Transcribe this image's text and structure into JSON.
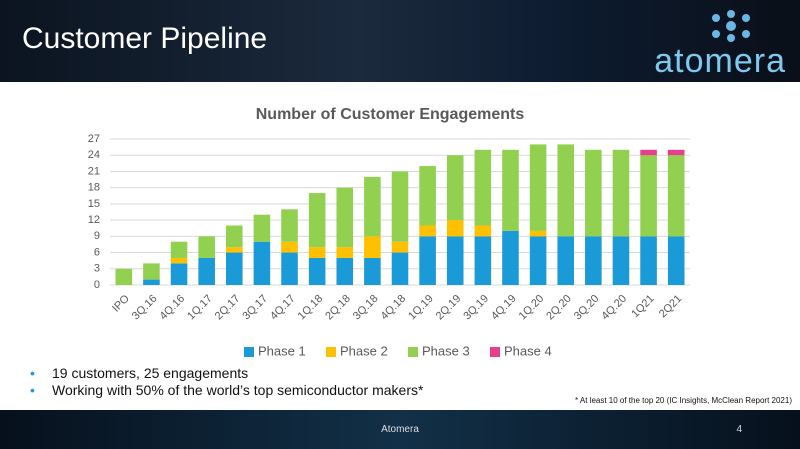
{
  "header": {
    "title": "Customer Pipeline",
    "logo": "atomera"
  },
  "chart_data": {
    "type": "bar",
    "stacked": true,
    "title": "Number of Customer Engagements",
    "categories": [
      "IPO",
      "3Q.16",
      "4Q.16",
      "1Q.17",
      "2Q.17",
      "3Q.17",
      "4Q.17",
      "1Q.18",
      "2Q.18",
      "3Q.18",
      "4Q.18",
      "1Q.19",
      "2Q.19",
      "3Q.19",
      "4Q.19",
      "1Q.20",
      "2Q.20",
      "3Q.20",
      "4Q.20",
      "1Q21",
      "2Q21"
    ],
    "series": [
      {
        "name": "Phase 1",
        "color": "#1a9ad6",
        "values": [
          0,
          1,
          4,
          5,
          6,
          8,
          6,
          5,
          5,
          5,
          6,
          9,
          9,
          9,
          10,
          9,
          9,
          9,
          9,
          9,
          9
        ]
      },
      {
        "name": "Phase 2",
        "color": "#ffc000",
        "values": [
          0,
          0,
          1,
          0,
          1,
          0,
          2,
          2,
          2,
          4,
          2,
          2,
          3,
          2,
          0,
          1,
          0,
          0,
          0,
          0,
          0
        ]
      },
      {
        "name": "Phase 3",
        "color": "#92d050",
        "values": [
          3,
          3,
          3,
          4,
          4,
          5,
          6,
          10,
          11,
          11,
          13,
          11,
          12,
          14,
          15,
          16,
          17,
          16,
          16,
          15,
          15
        ]
      },
      {
        "name": "Phase 4",
        "color": "#e83e8c",
        "values": [
          0,
          0,
          0,
          0,
          0,
          0,
          0,
          0,
          0,
          0,
          0,
          0,
          0,
          0,
          0,
          0,
          0,
          0,
          0,
          1,
          1
        ]
      }
    ],
    "ylim": [
      0,
      27
    ],
    "yticks": [
      0,
      3,
      6,
      9,
      12,
      15,
      18,
      21,
      24,
      27
    ],
    "grid": true,
    "legend": "bottom"
  },
  "bullets": [
    "19 customers, 25 engagements",
    "Working with 50% of the world’s top semiconductor makers*"
  ],
  "footnote": "* At least 10 of the top 20 (IC Insights, McClean Report 2021)",
  "footer": {
    "text": "Atomera",
    "page": "4"
  }
}
